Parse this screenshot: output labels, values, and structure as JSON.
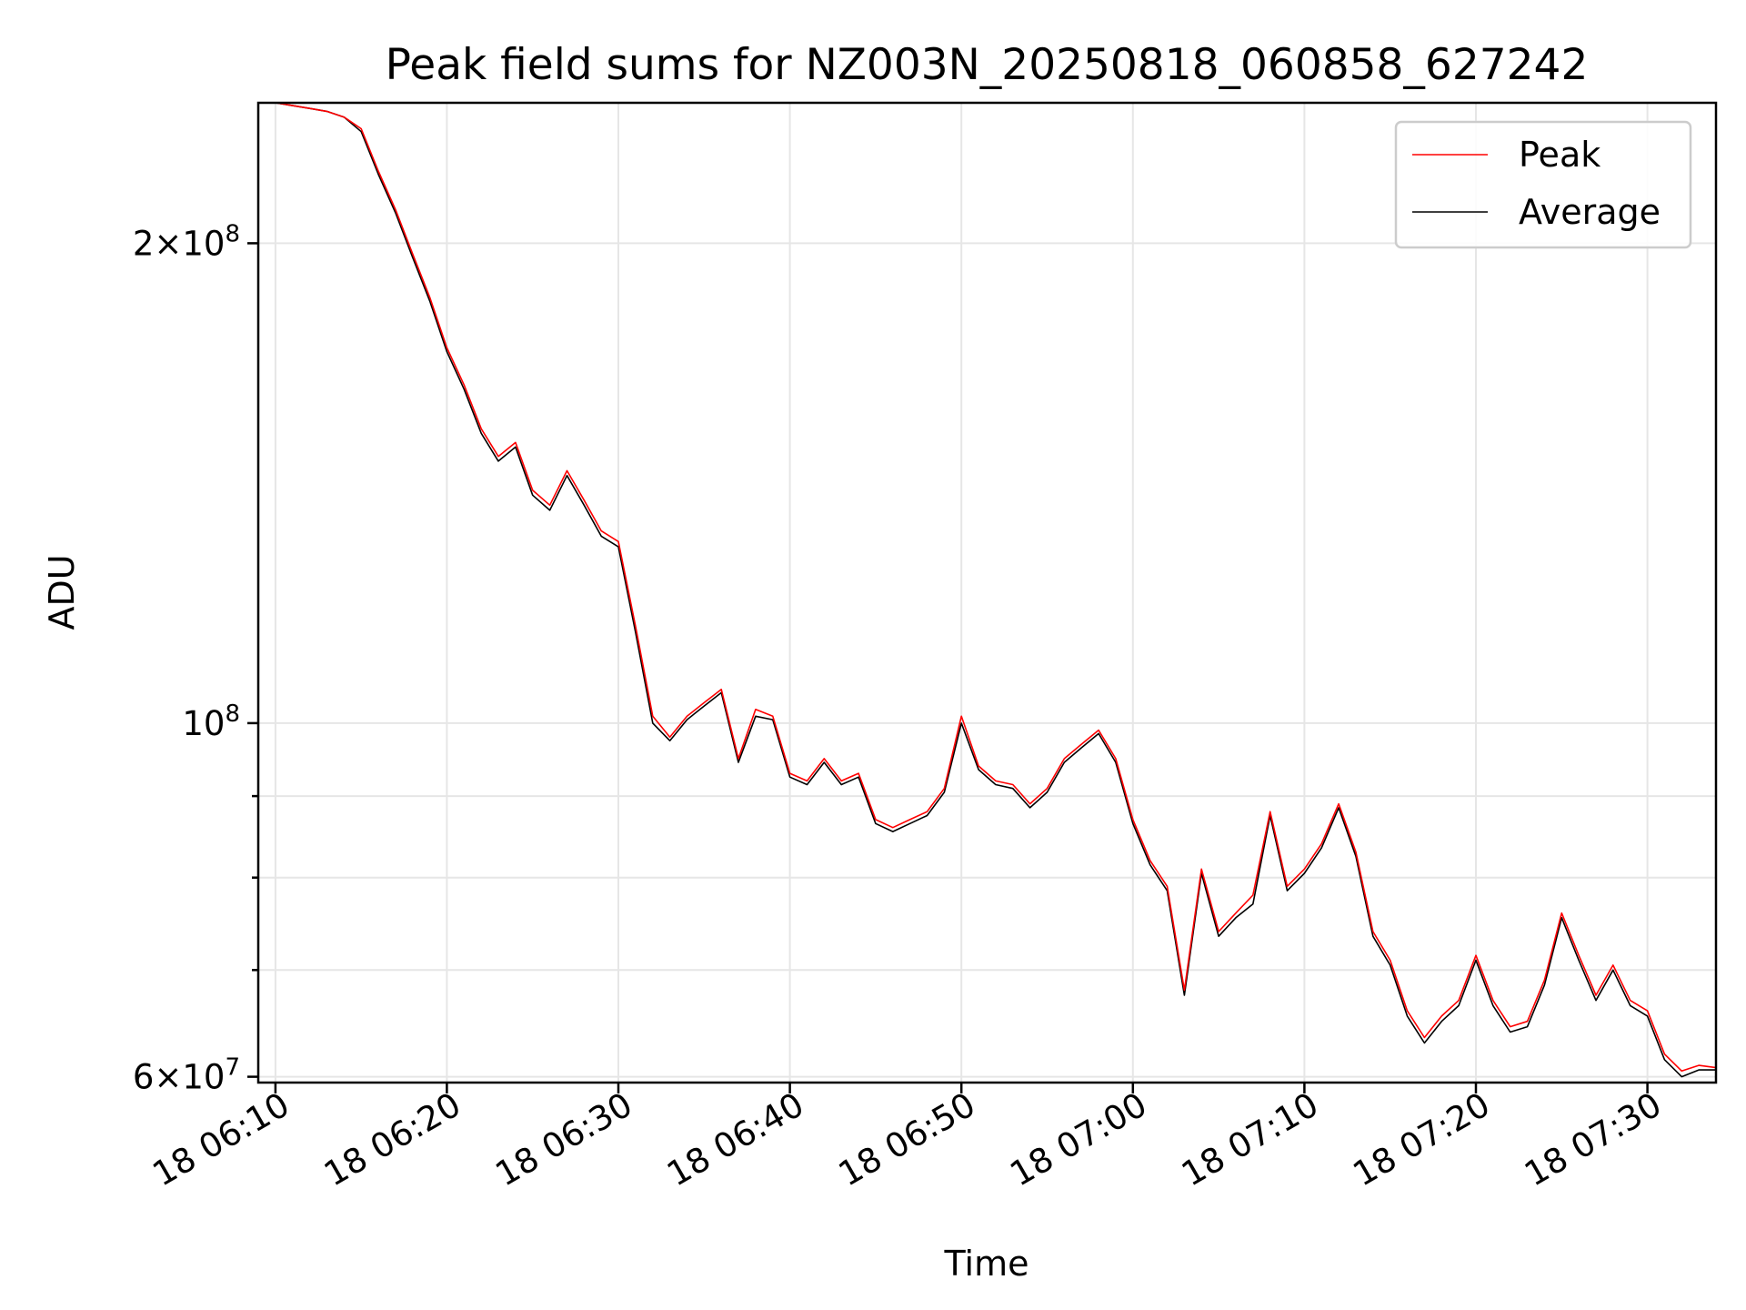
{
  "chart_data": {
    "type": "line",
    "title": "Peak field sums for NZ003N_20250818_060858_627242",
    "xlabel": "Time",
    "ylabel": "ADU",
    "yscale": "log",
    "ylim": [
      59500000,
      245000000
    ],
    "xlim": [
      "2025-08-18 06:09",
      "2025-08-18 07:34"
    ],
    "grid": true,
    "legend": "top-right",
    "x_ticks": [
      {
        "value": "2025-08-18 06:10",
        "label": "18 06:10"
      },
      {
        "value": "2025-08-18 06:20",
        "label": "18 06:20"
      },
      {
        "value": "2025-08-18 06:30",
        "label": "18 06:30"
      },
      {
        "value": "2025-08-18 06:40",
        "label": "18 06:40"
      },
      {
        "value": "2025-08-18 06:50",
        "label": "18 06:50"
      },
      {
        "value": "2025-08-18 07:00",
        "label": "18 07:00"
      },
      {
        "value": "2025-08-18 07:10",
        "label": "18 07:10"
      },
      {
        "value": "2025-08-18 07:20",
        "label": "18 07:20"
      },
      {
        "value": "2025-08-18 07:30",
        "label": "18 07:30"
      }
    ],
    "y_ticks_major": [
      {
        "value": 60000000,
        "mantissa": "6",
        "exponent": "7"
      },
      {
        "value": 100000000,
        "mantissa": "",
        "exponent": "8"
      },
      {
        "value": 200000000,
        "mantissa": "2",
        "exponent": "8"
      }
    ],
    "y_ticks_minor": [
      70000000,
      80000000,
      90000000
    ],
    "times": [
      "06:09",
      "06:10",
      "06:11",
      "06:12",
      "06:13",
      "06:14",
      "06:15",
      "06:16",
      "06:17",
      "06:18",
      "06:19",
      "06:20",
      "06:21",
      "06:22",
      "06:23",
      "06:24",
      "06:25",
      "06:26",
      "06:27",
      "06:28",
      "06:29",
      "06:30",
      "06:31",
      "06:32",
      "06:33",
      "06:34",
      "06:35",
      "06:36",
      "06:37",
      "06:38",
      "06:39",
      "06:40",
      "06:41",
      "06:42",
      "06:43",
      "06:44",
      "06:45",
      "06:46",
      "06:47",
      "06:48",
      "06:49",
      "06:50",
      "06:51",
      "06:52",
      "06:53",
      "06:54",
      "06:55",
      "06:56",
      "06:57",
      "06:58",
      "06:59",
      "07:00",
      "07:01",
      "07:02",
      "07:03",
      "07:04",
      "07:05",
      "07:06",
      "07:07",
      "07:08",
      "07:09",
      "07:10",
      "07:11",
      "07:12",
      "07:13",
      "07:14",
      "07:15",
      "07:16",
      "07:17",
      "07:18",
      "07:19",
      "07:20",
      "07:21",
      "07:22",
      "07:23",
      "07:24",
      "07:25",
      "07:26",
      "07:27",
      "07:28",
      "07:29",
      "07:30",
      "07:31",
      "07:32",
      "07:33",
      "07:34"
    ],
    "series": [
      {
        "name": "Peak",
        "color": "#ff0000",
        "values": [
          245000000,
          245000000,
          244000000,
          243000000,
          242000000,
          240000000,
          236000000,
          222000000,
          210000000,
          197000000,
          185000000,
          172000000,
          163000000,
          153000000,
          147000000,
          150000000,
          140000000,
          137000000,
          144000000,
          138000000,
          132000000,
          130000000,
          115000000,
          101000000,
          98000000,
          101000000,
          103000000,
          105000000,
          95000000,
          102000000,
          101000000,
          93000000,
          92000000,
          95000000,
          92000000,
          93000000,
          87000000,
          86000000,
          87000000,
          88000000,
          91000000,
          101000000,
          94000000,
          92000000,
          91500000,
          89000000,
          91000000,
          95000000,
          97000000,
          99000000,
          95000000,
          87000000,
          82000000,
          79000000,
          68000000,
          81000000,
          74000000,
          76000000,
          78000000,
          88000000,
          79000000,
          81000000,
          84000000,
          89000000,
          83000000,
          74000000,
          71000000,
          66000000,
          63500000,
          65500000,
          67000000,
          71500000,
          67000000,
          64500000,
          65000000,
          69000000,
          76000000,
          71500000,
          67500000,
          70500000,
          67000000,
          66000000,
          62000000,
          60500000,
          61000000,
          60800000
        ]
      },
      {
        "name": "Average",
        "color": "#000000",
        "values": [
          245000000,
          245000000,
          244000000,
          243000000,
          242000000,
          240000000,
          235000000,
          221000000,
          209000000,
          196000000,
          184000000,
          171000000,
          162000000,
          152000000,
          146000000,
          149000000,
          139000000,
          136000000,
          143000000,
          137000000,
          131000000,
          129000000,
          114000000,
          100000000,
          97500000,
          100500000,
          102500000,
          104500000,
          94500000,
          101000000,
          100500000,
          92500000,
          91500000,
          94500000,
          91500000,
          92500000,
          86500000,
          85500000,
          86500000,
          87500000,
          90500000,
          100000000,
          93500000,
          91500000,
          91000000,
          88500000,
          90500000,
          94500000,
          96500000,
          98500000,
          94500000,
          86500000,
          81500000,
          78500000,
          67500000,
          80500000,
          73500000,
          75500000,
          77000000,
          87500000,
          78500000,
          80500000,
          83500000,
          88500000,
          82500000,
          73500000,
          70500000,
          65500000,
          63000000,
          65000000,
          66500000,
          71000000,
          66500000,
          64000000,
          64500000,
          68500000,
          75500000,
          71000000,
          67000000,
          70000000,
          66500000,
          65500000,
          61500000,
          60000000,
          60600000,
          60600000
        ]
      }
    ]
  }
}
